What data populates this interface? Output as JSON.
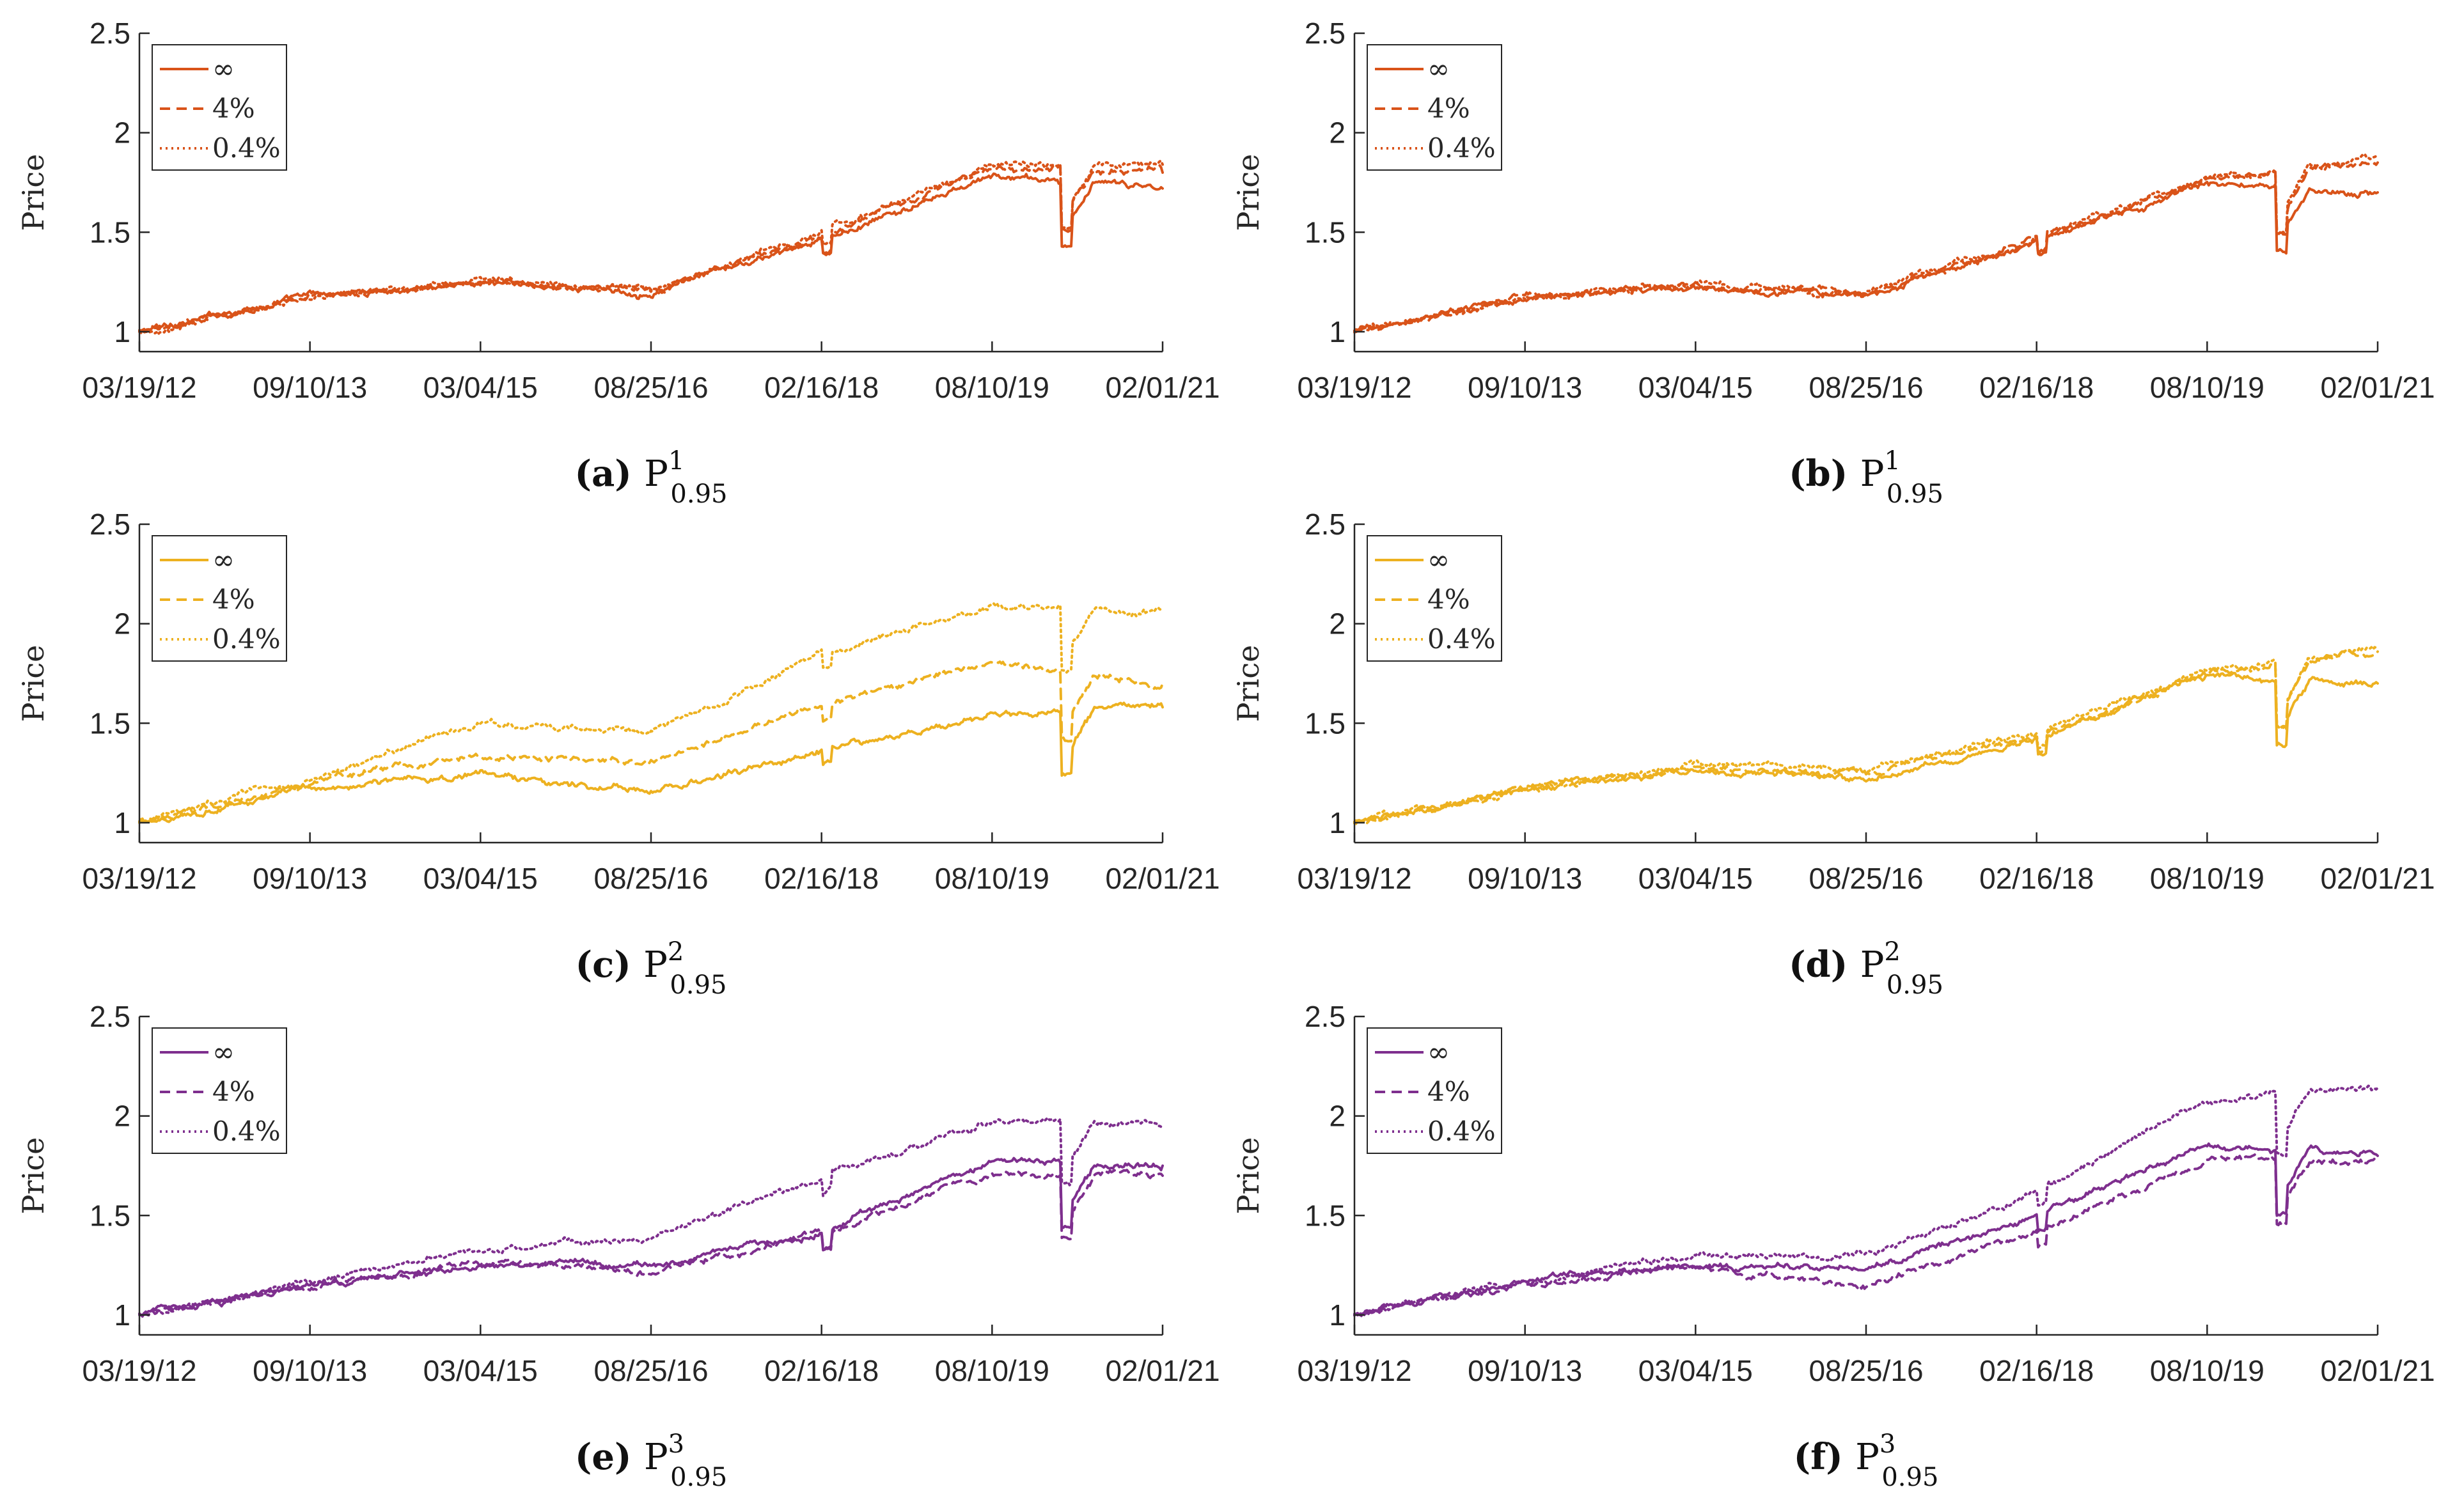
{
  "figure": {
    "ylabel": "Price",
    "xtick_labels": [
      "03/19/12",
      "09/10/13",
      "03/04/15",
      "08/25/16",
      "02/16/18",
      "08/10/19",
      "02/01/21"
    ],
    "ytick_labels": [
      "1",
      "1.5",
      "2",
      "2.5"
    ],
    "legend_labels": [
      "∞",
      "4%",
      "0.4%"
    ],
    "colors": {
      "orange": "#D95319",
      "yellow": "#EDB120",
      "purple": "#7E2F8E"
    }
  },
  "chart_data": [
    {
      "type": "line",
      "caption_letter": "(a)",
      "caption_symbol": "P",
      "caption_sup": "1",
      "caption_sub": "0.95",
      "color": "#D95319",
      "xlabel": "",
      "ylabel": "Price",
      "ylim": [
        0.9,
        2.5
      ],
      "x": [
        "03/19/12",
        "09/10/13",
        "03/04/15",
        "08/25/16",
        "02/16/18",
        "08/10/19",
        "02/01/21"
      ],
      "series": [
        {
          "name": "∞",
          "style": "solid",
          "values": [
            1.0,
            1.18,
            1.25,
            1.2,
            1.45,
            1.78,
            1.72
          ]
        },
        {
          "name": "4%",
          "style": "dashed",
          "values": [
            1.0,
            1.18,
            1.25,
            1.21,
            1.48,
            1.82,
            1.8
          ]
        },
        {
          "name": "0.4%",
          "style": "dotted",
          "values": [
            1.0,
            1.18,
            1.25,
            1.22,
            1.5,
            1.84,
            1.84
          ]
        }
      ]
    },
    {
      "type": "line",
      "caption_letter": "(b)",
      "caption_symbol": "P",
      "caption_sup": "1",
      "caption_sub": "0.95",
      "color": "#D95319",
      "xlabel": "",
      "ylabel": "Price",
      "ylim": [
        0.9,
        2.5
      ],
      "x": [
        "03/19/12",
        "09/10/13",
        "03/04/15",
        "08/25/16",
        "02/16/18",
        "08/10/19",
        "02/01/21"
      ],
      "series": [
        {
          "name": "∞",
          "style": "solid",
          "values": [
            1.0,
            1.17,
            1.22,
            1.18,
            1.45,
            1.74,
            1.7
          ]
        },
        {
          "name": "4%",
          "style": "dashed",
          "values": [
            1.0,
            1.17,
            1.23,
            1.19,
            1.47,
            1.76,
            1.85
          ]
        },
        {
          "name": "0.4%",
          "style": "dotted",
          "values": [
            1.0,
            1.17,
            1.23,
            1.19,
            1.47,
            1.77,
            1.87
          ]
        }
      ]
    },
    {
      "type": "line",
      "caption_letter": "(c)",
      "caption_symbol": "P",
      "caption_sup": "2",
      "caption_sub": "0.95",
      "color": "#EDB120",
      "xlabel": "",
      "ylabel": "Price",
      "ylim": [
        0.9,
        2.5
      ],
      "x": [
        "03/19/12",
        "09/10/13",
        "03/04/15",
        "08/25/16",
        "02/16/18",
        "08/10/19",
        "02/01/21"
      ],
      "series": [
        {
          "name": "∞",
          "style": "solid",
          "values": [
            1.0,
            1.17,
            1.25,
            1.15,
            1.35,
            1.55,
            1.58
          ]
        },
        {
          "name": "4%",
          "style": "dashed",
          "values": [
            1.0,
            1.2,
            1.35,
            1.3,
            1.6,
            1.8,
            1.7
          ]
        },
        {
          "name": "0.4%",
          "style": "dotted",
          "values": [
            1.0,
            1.22,
            1.5,
            1.45,
            1.85,
            2.1,
            2.06
          ]
        }
      ]
    },
    {
      "type": "line",
      "caption_letter": "(d)",
      "caption_symbol": "P",
      "caption_sup": "2",
      "caption_sub": "0.95",
      "color": "#EDB120",
      "xlabel": "",
      "ylabel": "Price",
      "ylim": [
        0.9,
        2.5
      ],
      "x": [
        "03/19/12",
        "09/10/13",
        "03/04/15",
        "08/25/16",
        "02/16/18",
        "08/10/19",
        "02/01/21"
      ],
      "series": [
        {
          "name": "∞",
          "style": "solid",
          "values": [
            1.0,
            1.17,
            1.26,
            1.22,
            1.42,
            1.73,
            1.7
          ]
        },
        {
          "name": "4%",
          "style": "dashed",
          "values": [
            1.0,
            1.17,
            1.28,
            1.25,
            1.44,
            1.75,
            1.86
          ]
        },
        {
          "name": "0.4%",
          "style": "dotted",
          "values": [
            1.0,
            1.17,
            1.3,
            1.27,
            1.45,
            1.76,
            1.88
          ]
        }
      ]
    },
    {
      "type": "line",
      "caption_letter": "(e)",
      "caption_symbol": "P",
      "caption_sup": "3",
      "caption_sub": "0.95",
      "color": "#7E2F8E",
      "xlabel": "",
      "ylabel": "Price",
      "ylim": [
        0.9,
        2.5
      ],
      "x": [
        "03/19/12",
        "09/10/13",
        "03/04/15",
        "08/25/16",
        "02/16/18",
        "08/10/19",
        "02/01/21"
      ],
      "series": [
        {
          "name": "∞",
          "style": "solid",
          "values": [
            1.0,
            1.15,
            1.25,
            1.25,
            1.42,
            1.78,
            1.75
          ]
        },
        {
          "name": "4%",
          "style": "dashed",
          "values": [
            1.0,
            1.15,
            1.27,
            1.22,
            1.4,
            1.7,
            1.7
          ]
        },
        {
          "name": "0.4%",
          "style": "dotted",
          "values": [
            1.0,
            1.17,
            1.33,
            1.38,
            1.7,
            1.98,
            1.95
          ]
        }
      ]
    },
    {
      "type": "line",
      "caption_letter": "(f)",
      "caption_symbol": "P",
      "caption_sup": "3",
      "caption_sub": "0.95",
      "color": "#7E2F8E",
      "xlabel": "",
      "ylabel": "Price",
      "ylim": [
        0.9,
        2.5
      ],
      "x": [
        "03/19/12",
        "09/10/13",
        "03/04/15",
        "08/25/16",
        "02/16/18",
        "08/10/19",
        "02/01/21"
      ],
      "series": [
        {
          "name": "∞",
          "style": "solid",
          "values": [
            1.0,
            1.17,
            1.25,
            1.22,
            1.5,
            1.85,
            1.8
          ]
        },
        {
          "name": "4%",
          "style": "dashed",
          "values": [
            1.0,
            1.16,
            1.24,
            1.15,
            1.42,
            1.78,
            1.78
          ]
        },
        {
          "name": "0.4%",
          "style": "dotted",
          "values": [
            1.0,
            1.17,
            1.3,
            1.3,
            1.62,
            2.08,
            2.14
          ]
        }
      ]
    }
  ]
}
